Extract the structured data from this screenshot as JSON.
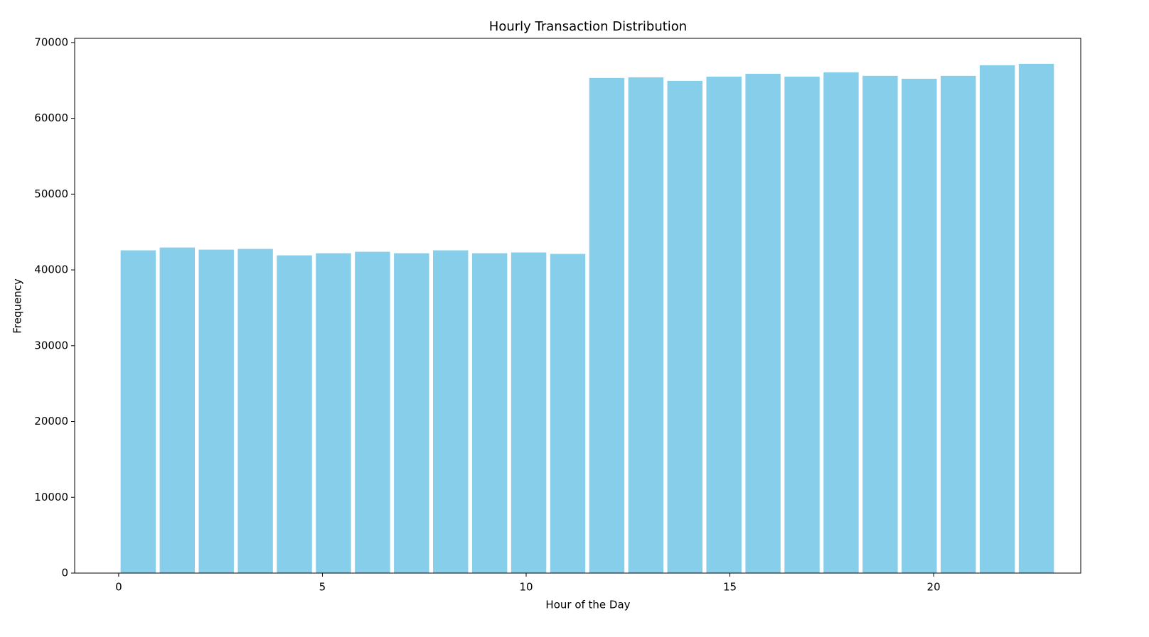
{
  "chart_data": {
    "type": "histogram",
    "title": "Hourly Transaction Distribution",
    "x_label": "Hour of the Day",
    "y_label": "Frequency",
    "bins": [
      0,
      0.958333,
      1.916667,
      2.875,
      3.833333,
      4.791667,
      5.75,
      6.708333,
      7.666667,
      8.625,
      9.583333,
      10.541667,
      11.5,
      12.458333,
      13.416667,
      14.375,
      15.333333,
      16.291667,
      17.25,
      18.208333,
      19.166667,
      20.125,
      21.083333,
      22.041667,
      23
    ],
    "counts": [
      42580,
      42950,
      42670,
      42770,
      41920,
      42200,
      42390,
      42200,
      42580,
      42200,
      42300,
      42110,
      65320,
      65410,
      64940,
      65500,
      65880,
      65500,
      66070,
      65600,
      65220,
      65600,
      67000,
      67190
    ],
    "color": "#87ceeb",
    "xlim": [
      -1.08,
      23.61
    ],
    "xticks": [
      0,
      5,
      10,
      15,
      20
    ],
    "ylim": [
      0,
      70550
    ],
    "yticks": [
      0,
      10000,
      20000,
      30000,
      40000,
      50000,
      60000,
      70000
    ],
    "grid": false
  }
}
